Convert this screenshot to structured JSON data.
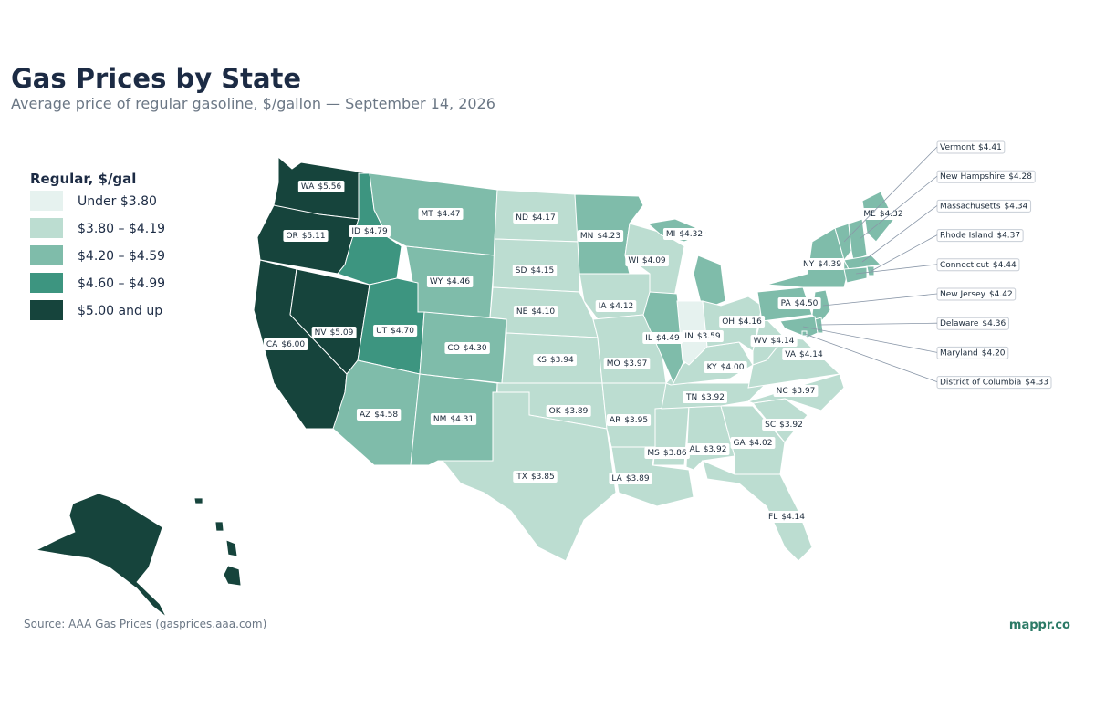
{
  "header": {
    "title": "Gas Prices by State",
    "subtitle": "Average price of regular gasoline, $/gallon — September 14, 2026"
  },
  "legend": {
    "title": "Regular, $/gal",
    "bins": [
      {
        "label": "Under $3.80",
        "color": "#e6f2ef"
      },
      {
        "label": "$3.80 – $4.19",
        "min": 3.8,
        "color": "#bcddd1"
      },
      {
        "label": "$4.20 – $4.59",
        "min": 4.2,
        "color": "#7fbcaa"
      },
      {
        "label": "$4.60 – $4.99",
        "min": 4.6,
        "color": "#3d9580"
      },
      {
        "label": "$5.00 and up",
        "min": 5.0,
        "color": "#16443c"
      }
    ]
  },
  "states": [
    {
      "abbr": "WA",
      "value": 5.56,
      "value_label": "$5.56"
    },
    {
      "abbr": "OR",
      "value": 5.11,
      "value_label": "$5.11"
    },
    {
      "abbr": "CA",
      "value": 6.0,
      "value_label": "$6.00"
    },
    {
      "abbr": "NV",
      "value": 5.09,
      "value_label": "$5.09"
    },
    {
      "abbr": "ID",
      "value": 4.79,
      "value_label": "$4.79"
    },
    {
      "abbr": "MT",
      "value": 4.47,
      "value_label": "$4.47"
    },
    {
      "abbr": "WY",
      "value": 4.46,
      "value_label": "$4.46"
    },
    {
      "abbr": "UT",
      "value": 4.7,
      "value_label": "$4.70"
    },
    {
      "abbr": "AZ",
      "value": 4.58,
      "value_label": "$4.58"
    },
    {
      "abbr": "CO",
      "value": 4.3,
      "value_label": "$4.30"
    },
    {
      "abbr": "NM",
      "value": 4.31,
      "value_label": "$4.31"
    },
    {
      "abbr": "ND",
      "value": 4.17,
      "value_label": "$4.17"
    },
    {
      "abbr": "SD",
      "value": 4.15,
      "value_label": "$4.15"
    },
    {
      "abbr": "NE",
      "value": 4.1,
      "value_label": "$4.10"
    },
    {
      "abbr": "KS",
      "value": 3.94,
      "value_label": "$3.94"
    },
    {
      "abbr": "OK",
      "value": 3.89,
      "value_label": "$3.89"
    },
    {
      "abbr": "TX",
      "value": 3.85,
      "value_label": "$3.85"
    },
    {
      "abbr": "MN",
      "value": 4.23,
      "value_label": "$4.23"
    },
    {
      "abbr": "IA",
      "value": 4.12,
      "value_label": "$4.12"
    },
    {
      "abbr": "MO",
      "value": 3.97,
      "value_label": "$3.97"
    },
    {
      "abbr": "AR",
      "value": 3.95,
      "value_label": "$3.95"
    },
    {
      "abbr": "LA",
      "value": 3.89,
      "value_label": "$3.89"
    },
    {
      "abbr": "MS",
      "value": 3.86,
      "value_label": "$3.86"
    },
    {
      "abbr": "AL",
      "value": 3.92,
      "value_label": "$3.92"
    },
    {
      "abbr": "GA",
      "value": 4.02,
      "value_label": "$4.02"
    },
    {
      "abbr": "FL",
      "value": 4.14,
      "value_label": "$4.14"
    },
    {
      "abbr": "SC",
      "value": 3.92,
      "value_label": "$3.92"
    },
    {
      "abbr": "NC",
      "value": 3.97,
      "value_label": "$3.97"
    },
    {
      "abbr": "TN",
      "value": 3.92,
      "value_label": "$3.92"
    },
    {
      "abbr": "KY",
      "value": 4.0,
      "value_label": "$4.00"
    },
    {
      "abbr": "WI",
      "value": 4.09,
      "value_label": "$4.09"
    },
    {
      "abbr": "MI",
      "value": 4.32,
      "value_label": "$4.32"
    },
    {
      "abbr": "IL",
      "value": 4.49,
      "value_label": "$4.49"
    },
    {
      "abbr": "IN",
      "value": 3.59,
      "value_label": "$3.59"
    },
    {
      "abbr": "OH",
      "value": 4.16,
      "value_label": "$4.16"
    },
    {
      "abbr": "WV",
      "value": 4.14,
      "value_label": "$4.14"
    },
    {
      "abbr": "VA",
      "value": 4.14,
      "value_label": "$4.14"
    },
    {
      "abbr": "PA",
      "value": 4.5,
      "value_label": "$4.50"
    },
    {
      "abbr": "NY",
      "value": 4.39,
      "value_label": "$4.39"
    },
    {
      "abbr": "ME",
      "value": 4.32,
      "value_label": "$4.32"
    },
    {
      "name": "Vermont",
      "value": 4.41,
      "value_label": "$4.41"
    },
    {
      "name": "New Hampshire",
      "value": 4.28,
      "value_label": "$4.28"
    },
    {
      "name": "Massachusetts",
      "value": 4.34,
      "value_label": "$4.34"
    },
    {
      "name": "Rhode Island",
      "value": 4.37,
      "value_label": "$4.37"
    },
    {
      "name": "Connecticut",
      "value": 4.44,
      "value_label": "$4.44"
    },
    {
      "name": "New Jersey",
      "value": 4.42,
      "value_label": "$4.42"
    },
    {
      "name": "Delaware",
      "value": 4.36,
      "value_label": "$4.36"
    },
    {
      "name": "Maryland",
      "value": 4.2,
      "value_label": "$4.20"
    },
    {
      "name": "District of Columbia",
      "value": 4.33,
      "value_label": "$4.33"
    }
  ],
  "footer": {
    "source": "Source: AAA Gas Prices (gasprices.aaa.com)",
    "brand": "mappr.co"
  }
}
